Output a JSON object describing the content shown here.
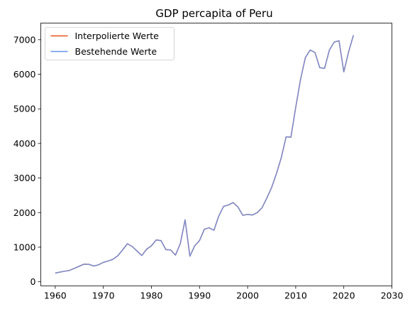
{
  "chart_data": {
    "type": "line",
    "title": "GDP percapita of Peru",
    "xlabel": "",
    "ylabel": "",
    "xlim": [
      1957,
      2030
    ],
    "ylim": [
      -120,
      7480
    ],
    "xticks": [
      1960,
      1970,
      1980,
      1990,
      2000,
      2010,
      2020,
      2030
    ],
    "yticks": [
      0,
      1000,
      2000,
      3000,
      4000,
      5000,
      6000,
      7000
    ],
    "grid": false,
    "legend_position": "top-left",
    "series": [
      {
        "name": "Interpolierte Werte",
        "color": "#e8501c",
        "x": [
          1960,
          1961,
          1962,
          1963,
          1964,
          1965,
          1966,
          1967,
          1968,
          1969,
          1970,
          1971,
          1972,
          1973,
          1974,
          1975,
          1976,
          1977,
          1978,
          1979,
          1980,
          1981,
          1982,
          1983,
          1984,
          1985,
          1986,
          1987,
          1988,
          1989,
          1990,
          1991,
          1992,
          1993,
          1994,
          1995,
          1996,
          1997,
          1998,
          1999,
          2000,
          2001,
          2002,
          2003,
          2004,
          2005,
          2006,
          2007,
          2008,
          2009,
          2010,
          2011,
          2012,
          2013,
          2014,
          2015,
          2016,
          2017,
          2018,
          2019,
          2020,
          2021,
          2022
        ],
        "y": [
          250,
          280,
          305,
          330,
          390,
          450,
          510,
          505,
          455,
          490,
          560,
          600,
          650,
          750,
          920,
          1100,
          1020,
          890,
          760,
          940,
          1040,
          1210,
          1190,
          930,
          920,
          770,
          1100,
          1790,
          740,
          1040,
          1190,
          1520,
          1560,
          1490,
          1900,
          2180,
          2220,
          2290,
          2160,
          1920,
          1950,
          1930,
          2000,
          2140,
          2420,
          2730,
          3130,
          3590,
          4190,
          4180,
          5040,
          5850,
          6480,
          6700,
          6630,
          6190,
          6170,
          6700,
          6930,
          6970,
          6070,
          6650,
          7130
        ]
      },
      {
        "name": "Bestehende Werte",
        "color": "#6495ed",
        "x": [
          1960,
          1961,
          1962,
          1963,
          1964,
          1965,
          1966,
          1967,
          1968,
          1969,
          1970,
          1971,
          1972,
          1973,
          1974,
          1975,
          1976,
          1977,
          1978,
          1979,
          1980,
          1981,
          1982,
          1983,
          1984,
          1985,
          1986,
          1987,
          1988,
          1989,
          1990,
          1991,
          1992,
          1993,
          1994,
          1995,
          1996,
          1997,
          1998,
          1999,
          2000,
          2001,
          2002,
          2003,
          2004,
          2005,
          2006,
          2007,
          2008,
          2009,
          2010,
          2011,
          2012,
          2013,
          2014,
          2015,
          2016,
          2017,
          2018,
          2019,
          2020,
          2021,
          2022
        ],
        "y": [
          250,
          280,
          305,
          330,
          390,
          450,
          510,
          505,
          455,
          490,
          560,
          600,
          650,
          750,
          920,
          1100,
          1020,
          890,
          760,
          940,
          1040,
          1210,
          1190,
          930,
          920,
          770,
          1100,
          1790,
          740,
          1040,
          1190,
          1520,
          1560,
          1490,
          1900,
          2180,
          2220,
          2290,
          2160,
          1920,
          1950,
          1930,
          2000,
          2140,
          2420,
          2730,
          3130,
          3590,
          4190,
          4180,
          5040,
          5850,
          6480,
          6700,
          6630,
          6190,
          6170,
          6700,
          6930,
          6970,
          6070,
          6650,
          7130
        ]
      }
    ]
  }
}
